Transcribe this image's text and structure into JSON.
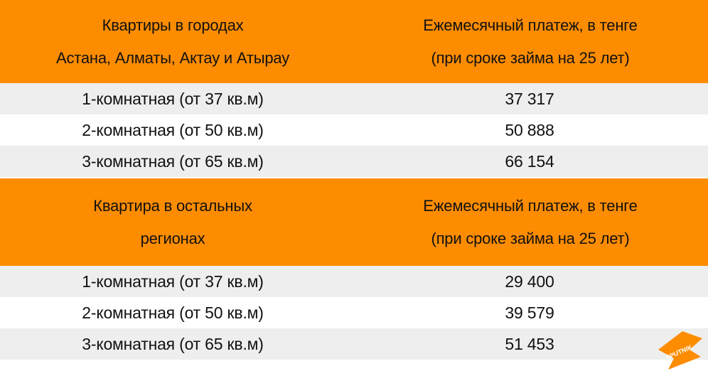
{
  "section1": {
    "header_left": [
      "Квартиры в городах",
      "Астана, Алматы, Актау и Атырау"
    ],
    "header_right": [
      "Ежемесячный платеж, в тенге",
      "(при сроке займа на 25 лет)"
    ],
    "rows": [
      {
        "type": "1-комнатная (от 37 кв.м)",
        "payment": "37 317"
      },
      {
        "type": "2-комнатная (от 50 кв.м)",
        "payment": "50 888"
      },
      {
        "type": "3-комнатная (от 65 кв.м)",
        "payment": "66 154"
      }
    ]
  },
  "section2": {
    "header_left": [
      "Квартира в остальных",
      "регионах"
    ],
    "header_right": [
      "Ежемесячный платеж, в тенге",
      "(при сроке займа на 25 лет)"
    ],
    "rows": [
      {
        "type": "1-комнатная (от 37 кв.м)",
        "payment": "29 400"
      },
      {
        "type": "2-комнатная (от 50 кв.м)",
        "payment": "39 579"
      },
      {
        "type": "3-комнатная (от 65 кв.м)",
        "payment": "51 453"
      }
    ]
  },
  "logo": {
    "text": "SPUTNIK",
    "color": "#fd8c00"
  },
  "colors": {
    "header_bg": "#fd8c00",
    "row_shaded": "#eeeeee",
    "row_plain": "#ffffff"
  }
}
